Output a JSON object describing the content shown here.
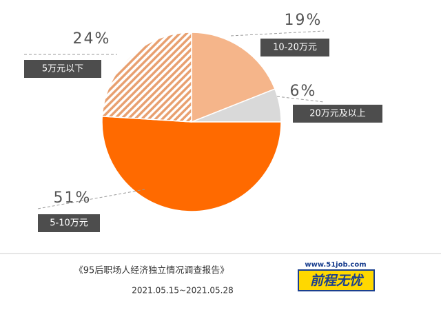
{
  "chart_data": {
    "type": "pie",
    "categories": [
      "10-20万元",
      "20万元及以上",
      "5-10万元",
      "5万元以下"
    ],
    "values": [
      19,
      6,
      51,
      24
    ],
    "value_labels": [
      "19%",
      "6%",
      "51%",
      "24%"
    ],
    "colors": [
      "#f5b58a",
      "#d9d9d9",
      "#ff6a00",
      "#e8a070"
    ],
    "hatched": [
      false,
      false,
      false,
      true
    ]
  },
  "footer": {
    "report_title": "《95后职场人经济独立情况调查报告》",
    "date_range": "2021.05.15~2021.05.28"
  },
  "logo": {
    "url": "www.51job.com",
    "name": "前程无忧"
  }
}
